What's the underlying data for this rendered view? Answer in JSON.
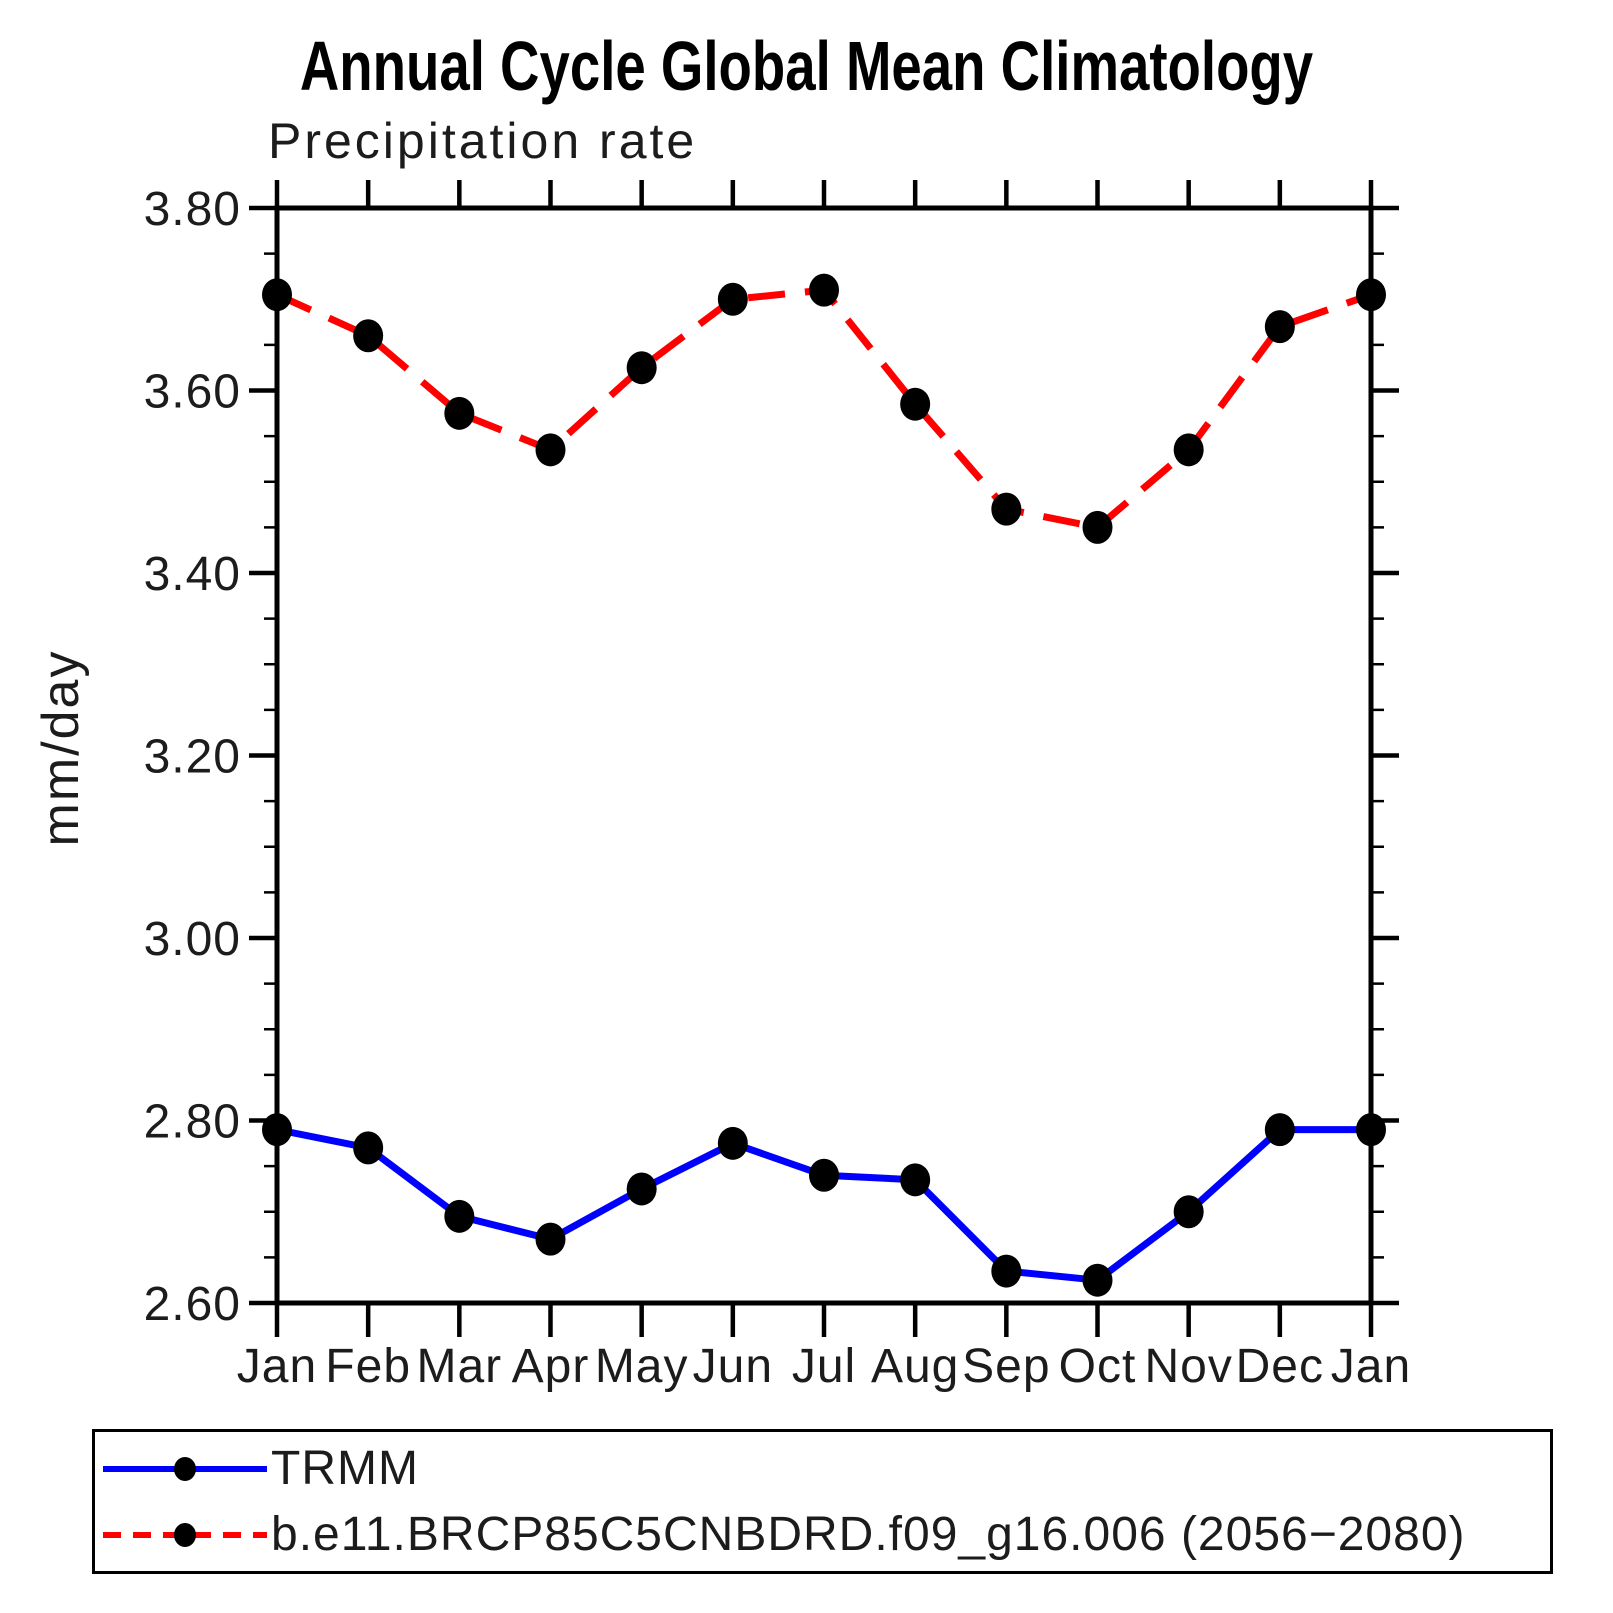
{
  "title": "Annual Cycle Global Mean Climatology",
  "colors": {
    "background": "#ffffff",
    "axis": "#000000",
    "marker": "#000000",
    "trmm_line": "#0000ff",
    "model_line": "#ff0000"
  },
  "chart_data": {
    "type": "line",
    "title": "Annual Cycle Global Mean Climatology",
    "subtitle": "Precipitation rate",
    "xlabel": "",
    "ylabel": "mm/day",
    "categories": [
      "Jan",
      "Feb",
      "Mar",
      "Apr",
      "May",
      "Jun",
      "Jul",
      "Aug",
      "Sep",
      "Oct",
      "Nov",
      "Dec",
      "Jan"
    ],
    "series": [
      {
        "name": "TRMM",
        "color": "#0000ff",
        "line_style": "solid",
        "marker": "black-dot",
        "values": [
          2.79,
          2.77,
          2.695,
          2.67,
          2.725,
          2.775,
          2.74,
          2.735,
          2.635,
          2.625,
          2.7,
          2.79,
          2.79
        ]
      },
      {
        "name": "b.e11.BRCP85C5CNBDRD.f09_g16.006 (2056−2080)",
        "color": "#ff0000",
        "line_style": "dashed",
        "marker": "black-dot",
        "values": [
          3.705,
          3.66,
          3.575,
          3.535,
          3.625,
          3.7,
          3.71,
          3.585,
          3.47,
          3.45,
          3.535,
          3.67,
          3.705
        ]
      }
    ],
    "ylim": [
      2.6,
      3.8
    ],
    "ytick_major_step": 0.2,
    "ytick_minor_step": 0.05,
    "ytick_values": [
      3.8,
      3.6,
      3.4,
      3.2,
      3.0,
      2.8,
      2.6
    ],
    "ytick_labels": [
      "3.80",
      "3.60",
      "3.40",
      "3.20",
      "3.00",
      "2.80",
      "2.60"
    ],
    "grid": false,
    "legend_position": "bottom-left-box"
  }
}
